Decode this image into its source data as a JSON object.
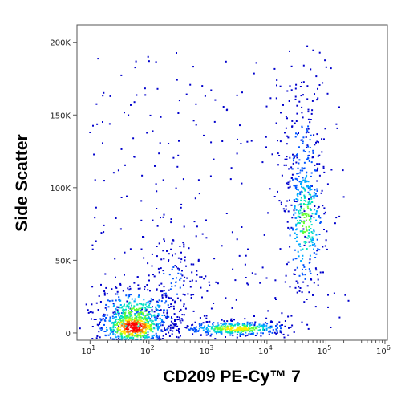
{
  "chart_data": {
    "type": "scatter",
    "subtype": "flow-cytometry density dot plot",
    "xlabel": "CD209 PE-Cy™ 7",
    "ylabel": "Side Scatter",
    "x_scale": "log",
    "xlim": [
      6,
      1100000
    ],
    "ylim": [
      -5000,
      212000
    ],
    "x_ticks": [
      {
        "value": 10,
        "base": "10",
        "exp": "1"
      },
      {
        "value": 100,
        "base": "10",
        "exp": "2"
      },
      {
        "value": 1000,
        "base": "10",
        "exp": "3"
      },
      {
        "value": 10000,
        "base": "10",
        "exp": "4"
      },
      {
        "value": 100000,
        "base": "10",
        "exp": "5"
      },
      {
        "value": 1000000,
        "base": "10",
        "exp": "6"
      }
    ],
    "y_ticks": [
      {
        "value": 0,
        "label": "0"
      },
      {
        "value": 50000,
        "label": "50K"
      },
      {
        "value": 100000,
        "label": "100K"
      },
      {
        "value": 150000,
        "label": "150K"
      },
      {
        "value": 200000,
        "label": "200K"
      }
    ],
    "grid": false,
    "legend": "none",
    "color_scale": [
      "#0000cc",
      "#0055ff",
      "#00aaff",
      "#00e0c0",
      "#66ff33",
      "#ffee00",
      "#ff7700",
      "#ff0000"
    ],
    "populations": [
      {
        "x_center": 55,
        "x_spread_decades": 0.28,
        "y_center": 4000,
        "y_spread": 6000,
        "peak_density": 1.0
      },
      {
        "x_center": 60,
        "x_spread_decades": 0.35,
        "y_center": 12000,
        "y_spread": 10000,
        "peak_density": 0.6
      },
      {
        "x_center": 3000,
        "x_spread_decades": 0.45,
        "y_center": 3000,
        "y_spread": 2500,
        "peak_density": 0.7
      },
      {
        "x_center": 45000,
        "x_spread_decades": 0.16,
        "y_center": 78000,
        "y_spread": 25000,
        "peak_density": 0.55
      },
      {
        "x_center": 40000,
        "x_spread_decades": 0.2,
        "y_center": 120000,
        "y_spread": 30000,
        "peak_density": 0.2
      },
      {
        "x_center": 250,
        "x_spread_decades": 0.3,
        "y_center": 35000,
        "y_spread": 18000,
        "peak_density": 0.15
      }
    ]
  }
}
